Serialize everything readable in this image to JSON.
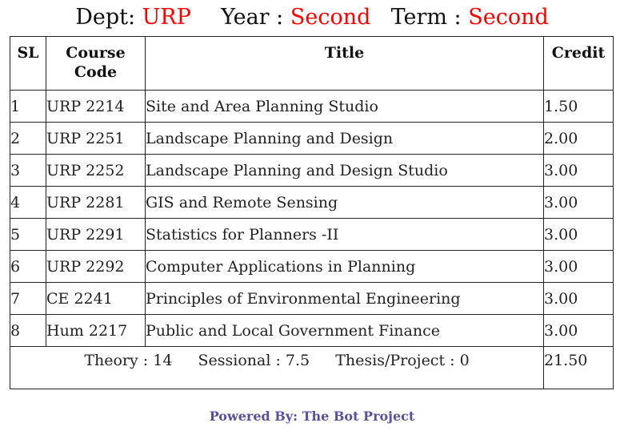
{
  "header": {
    "dept_label": "Dept:",
    "dept_value": "URP",
    "year_label": "Year :",
    "year_value": "Second",
    "term_label": "Term :",
    "term_value": "Second"
  },
  "table": {
    "columns": {
      "sl": "SL",
      "code_line1": "Course",
      "code_line2": "Code",
      "title": "Title",
      "credit": "Credit"
    },
    "rows": [
      {
        "sl": "1",
        "code": "URP 2214",
        "title": "Site and Area Planning Studio",
        "credit": "1.50"
      },
      {
        "sl": "2",
        "code": "URP 2251",
        "title": "Landscape Planning and Design",
        "credit": "2.00"
      },
      {
        "sl": "3",
        "code": "URP 2252",
        "title": "Landscape Planning and Design Studio",
        "credit": "3.00"
      },
      {
        "sl": "4",
        "code": "URP 2281",
        "title": "GIS and Remote Sensing",
        "credit": "3.00"
      },
      {
        "sl": "5",
        "code": "URP 2291",
        "title": "Statistics for Planners -II",
        "credit": "3.00"
      },
      {
        "sl": "6",
        "code": "URP 2292",
        "title": "Computer Applications in Planning",
        "credit": "3.00"
      },
      {
        "sl": "7",
        "code": "CE 2241",
        "title": "Principles of Environmental Engineering",
        "credit": "3.00"
      },
      {
        "sl": "8",
        "code": "Hum 2217",
        "title": "Public and Local Government Finance",
        "credit": "3.00"
      }
    ],
    "summary": {
      "theory": "Theory : 14",
      "sessional": "Sessional : 7.5",
      "thesis": "Thesis/Project : 0",
      "total_credit": "21.50"
    }
  },
  "footer": {
    "powered_by": "Powered By: The Bot Project"
  },
  "colors": {
    "accent_red": "#ff0000",
    "footer_purple": "#5a4fa0"
  }
}
